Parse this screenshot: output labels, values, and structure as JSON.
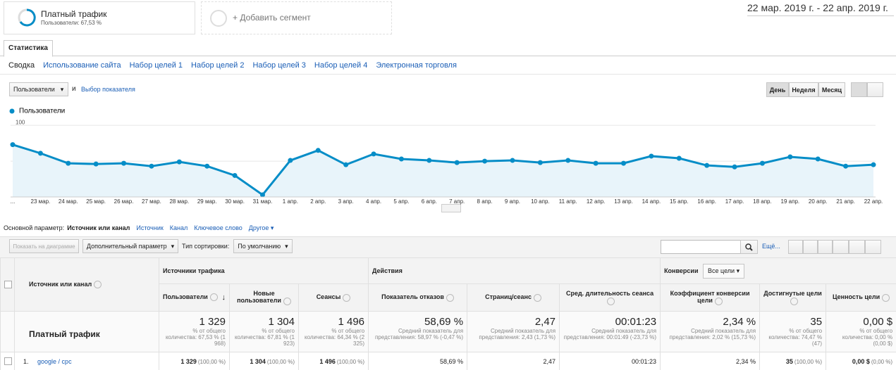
{
  "segment": {
    "title": "Платный трафик",
    "subtitle": "Пользователи: 67,53 %"
  },
  "add_segment": "+ Добавить сегмент",
  "date_range": "22 мар. 2019 г. - 22 апр. 2019 г.",
  "tab": "Статистика",
  "subtabs": [
    "Сводка",
    "Использование сайта",
    "Набор целей 1",
    "Набор целей 2",
    "Набор целей 3",
    "Набор целей 4",
    "Электронная торговля"
  ],
  "metric_select": "Пользователи",
  "and": "и",
  "choose_metric": "Выбор показателя",
  "period_buttons": [
    "День",
    "Неделя",
    "Месяц"
  ],
  "chart_data": {
    "type": "line",
    "categories": [
      "...",
      "23 мар.",
      "24 мар.",
      "25 мар.",
      "26 мар.",
      "27 мар.",
      "28 мар.",
      "29 мар.",
      "30 мар.",
      "31 мар.",
      "1 апр.",
      "2 апр.",
      "3 апр.",
      "4 апр.",
      "5 апр.",
      "6 апр.",
      "7 апр.",
      "8 апр.",
      "9 апр.",
      "10 апр.",
      "11 апр.",
      "12 апр.",
      "13 апр.",
      "14 апр.",
      "15 апр.",
      "16 апр.",
      "17 апр.",
      "18 апр.",
      "19 апр.",
      "20 апр.",
      "21 апр.",
      "22 апр."
    ],
    "series": [
      {
        "name": "Пользователи",
        "color": "#058dc7",
        "values": [
          73,
          61,
          47,
          46,
          47,
          43,
          49,
          43,
          30,
          3,
          51,
          65,
          45,
          60,
          53,
          51,
          48,
          50,
          51,
          48,
          51,
          47,
          47,
          57,
          54,
          44,
          42,
          47,
          56,
          53,
          43,
          45
        ]
      }
    ],
    "ylim": [
      0,
      108
    ],
    "yticks": [
      50,
      100
    ],
    "grid": true
  },
  "primary_dim_label": "Основной параметр:",
  "primary_dims": [
    "Источник или канал",
    "Источник",
    "Канал",
    "Ключевое слово",
    "Другое"
  ],
  "toolbar": {
    "plot_rows": "Показать на диаграмме",
    "secondary": "Дополнительный параметр",
    "sort_label": "Тип сортировки:",
    "sort_value": "По умолчанию",
    "more": "Ещё..."
  },
  "table": {
    "groups": [
      "Источники трафика",
      "Действия",
      "Конверсии"
    ],
    "goal_select": "Все цели",
    "columns": [
      "Источник или канал",
      "Пользователи",
      "Новые пользователи",
      "Сеансы",
      "Показатель отказов",
      "Страниц/сеанс",
      "Сред. длительность сеанса",
      "Коэффициент конверсии цели",
      "Достигнутые цели",
      "Ценность цели"
    ],
    "total": {
      "label": "Платный трафик",
      "cells": [
        {
          "value": "1 329",
          "note": "% от общего количества: 67,53 % (1 968)"
        },
        {
          "value": "1 304",
          "note": "% от общего количества: 67,81 % (1 923)"
        },
        {
          "value": "1 496",
          "note": "% от общего количества: 64,34 % (2 325)"
        },
        {
          "value": "58,69 %",
          "note": "Средний показатель для представления: 58,97 % (-0,47 %)"
        },
        {
          "value": "2,47",
          "note": "Средний показатель для представления: 2,43 (1,73 %)"
        },
        {
          "value": "00:01:23",
          "note": "Средний показатель для представления: 00:01:49 (-23,73 %)"
        },
        {
          "value": "2,34 %",
          "note": "Средний показатель для представления: 2,02 % (15,73 %)"
        },
        {
          "value": "35",
          "note": "% от общего количества: 74,47 % (47)"
        },
        {
          "value": "0,00 $",
          "note": "% от общего количества: 0,00 % (0,00 $)"
        }
      ]
    },
    "rows": [
      {
        "index": "1.",
        "label": "google / cpc",
        "cells": [
          {
            "value": "1 329",
            "share": "(100,00 %)"
          },
          {
            "value": "1 304",
            "share": "(100,00 %)"
          },
          {
            "value": "1 496",
            "share": "(100,00 %)"
          },
          {
            "value": "58,69 %"
          },
          {
            "value": "2,47"
          },
          {
            "value": "00:01:23"
          },
          {
            "value": "2,34 %"
          },
          {
            "value": "35",
            "share": "(100,00 %)"
          },
          {
            "value": "0,00 $",
            "share": "(0,00 %)"
          }
        ]
      }
    ]
  }
}
